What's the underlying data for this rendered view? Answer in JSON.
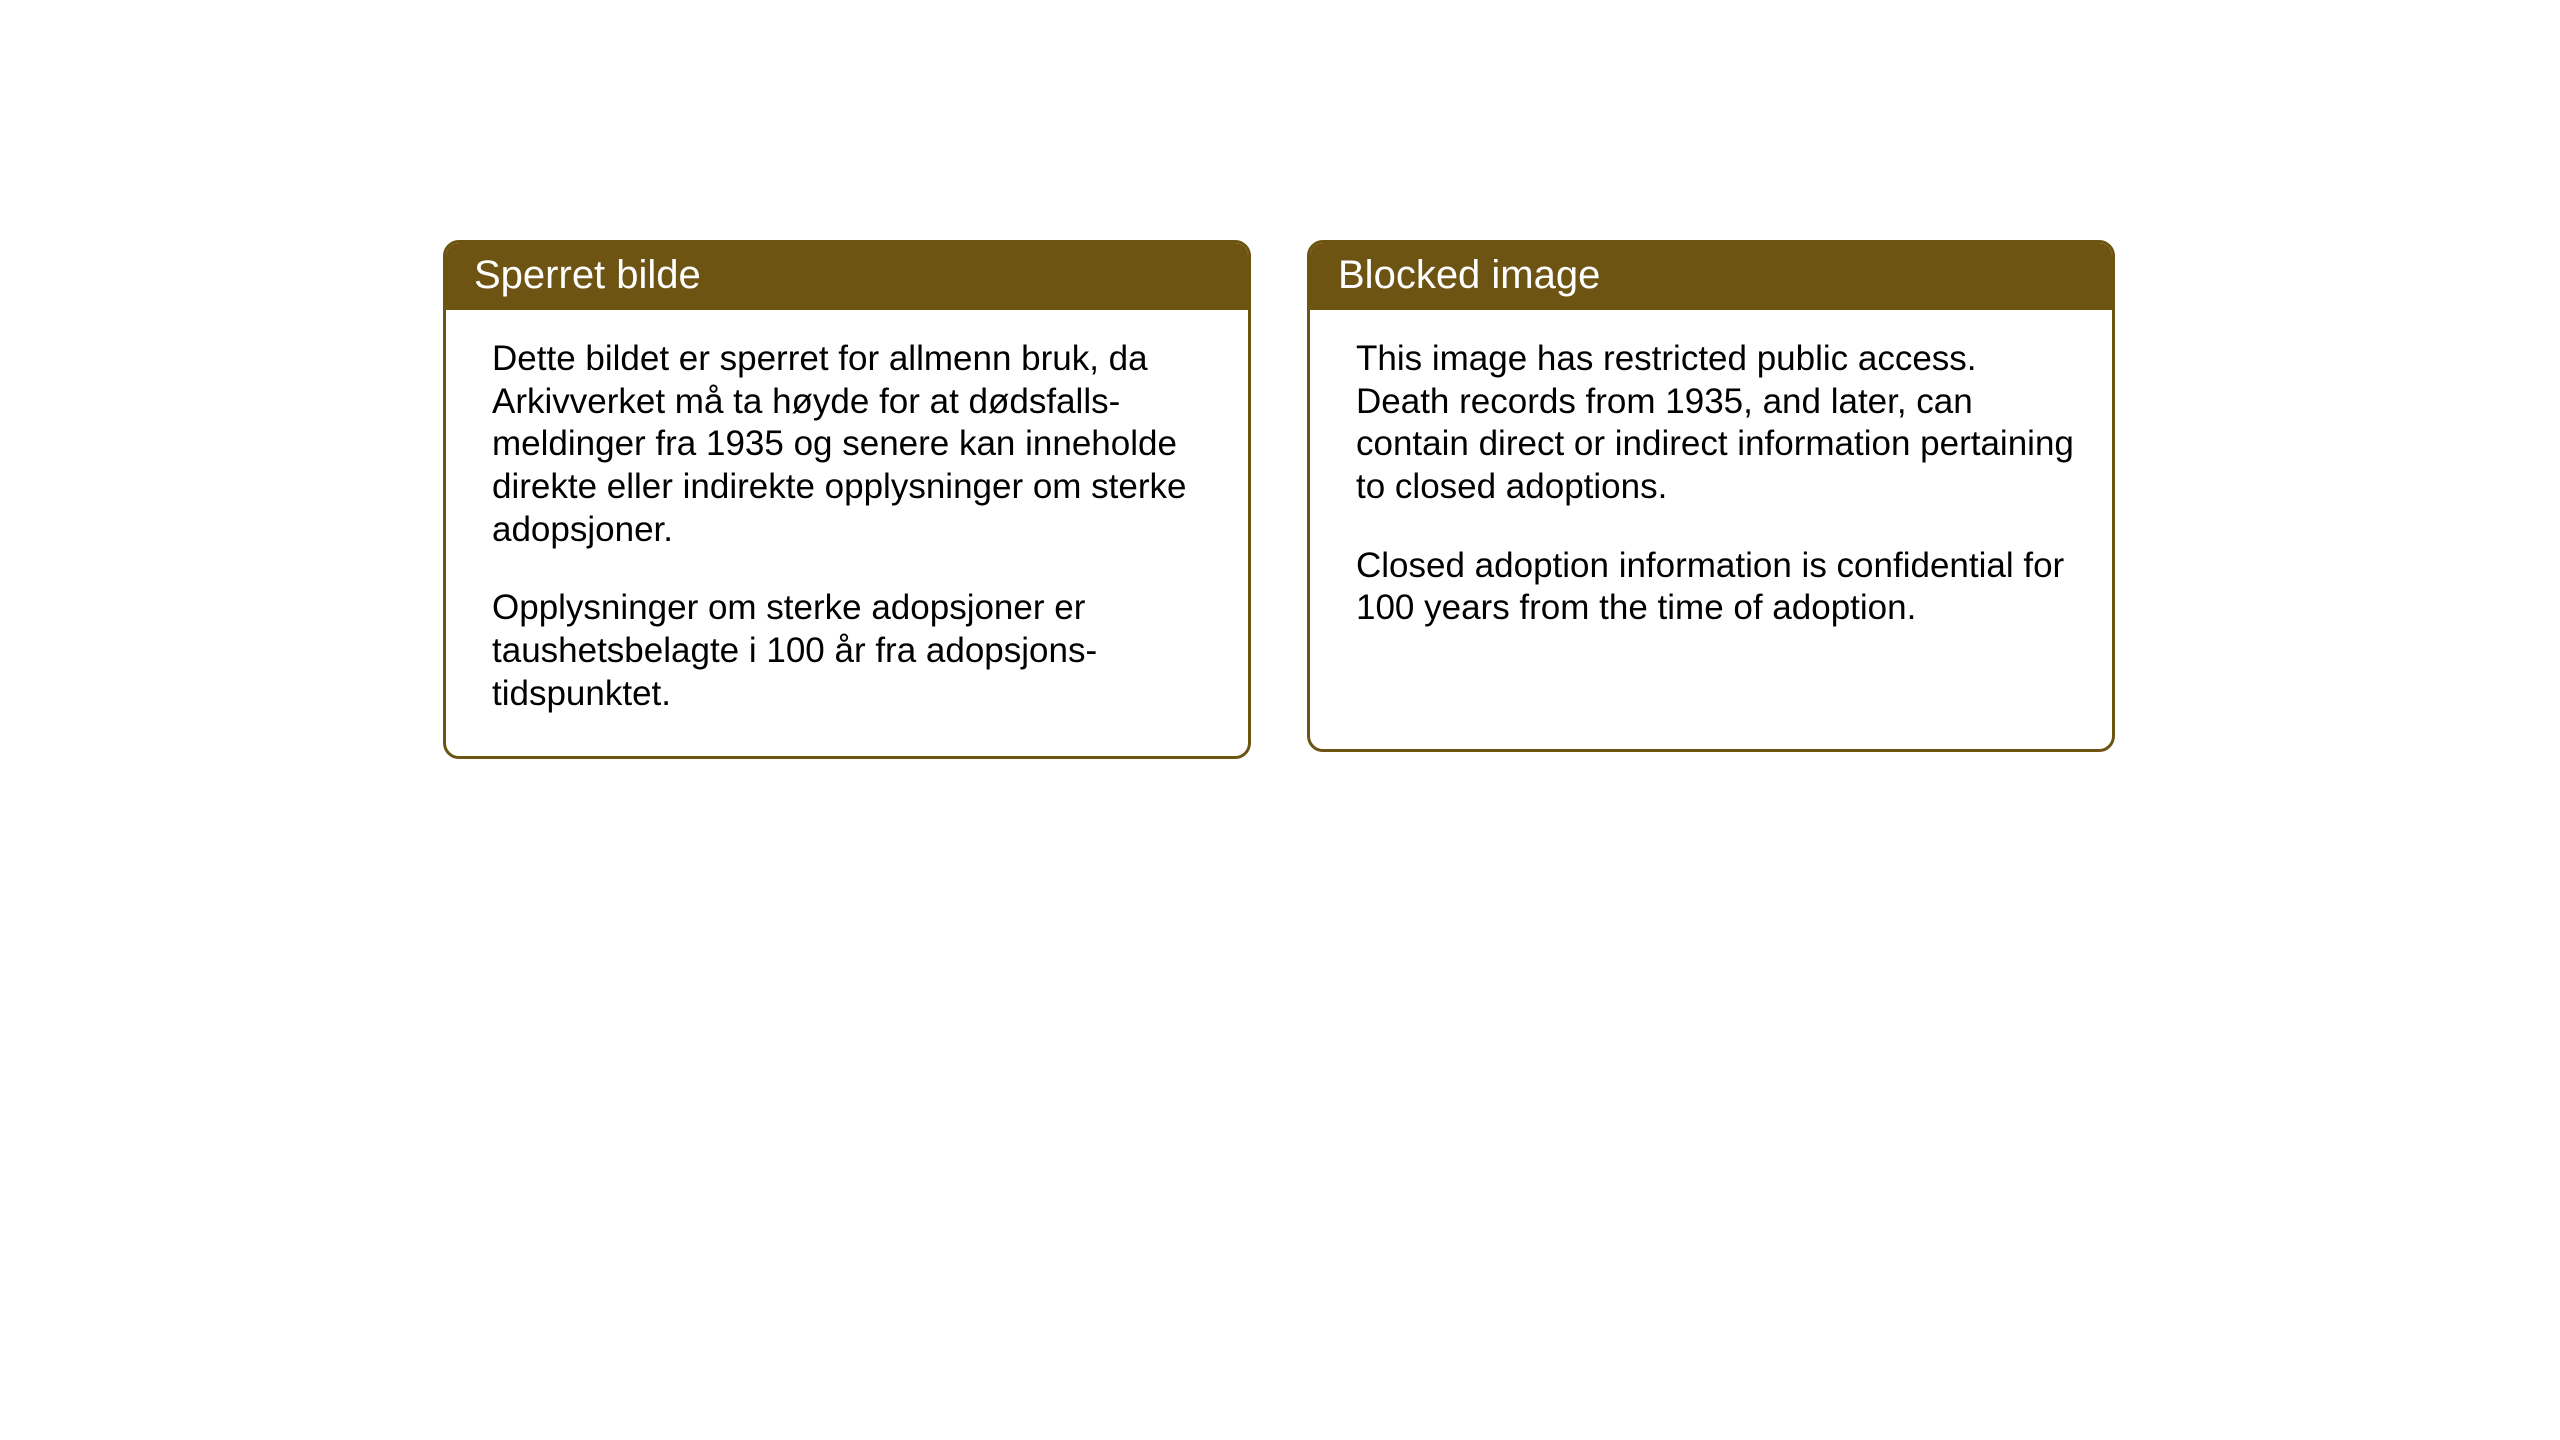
{
  "cards": {
    "norwegian": {
      "title": "Sperret bilde",
      "paragraph1": "Dette bildet er sperret for allmenn bruk, da Arkivverket må ta høyde for at dødsfalls-meldinger fra 1935 og senere kan inneholde direkte eller indirekte opplysninger om sterke adopsjoner.",
      "paragraph2": "Opplysninger om sterke adopsjoner er taushetsbelagte i 100 år fra adopsjons-tidspunktet."
    },
    "english": {
      "title": "Blocked image",
      "paragraph1": "This image has restricted public access. Death records from 1935, and later, can contain direct or indirect information pertaining to closed adoptions.",
      "paragraph2": "Closed adoption information is confidential for 100 years from the time of adoption."
    }
  },
  "styling": {
    "header_background": "#6e5413",
    "header_text_color": "#ffffff",
    "border_color": "#6e5413",
    "body_background": "#ffffff",
    "body_text_color": "#000000",
    "header_fontsize": 40,
    "body_fontsize": 35,
    "border_radius": 16,
    "border_width": 3
  }
}
